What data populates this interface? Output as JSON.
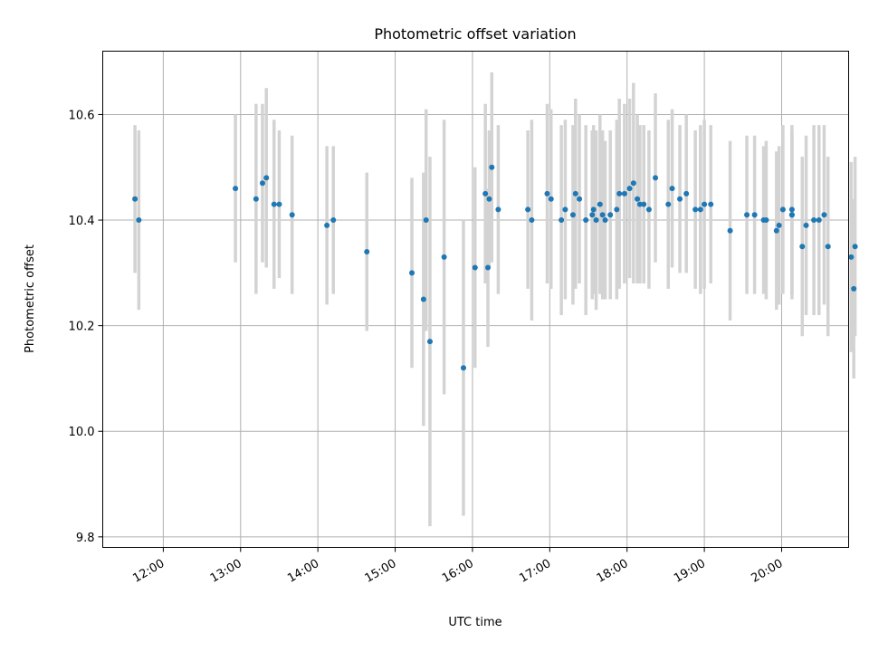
{
  "chart_data": {
    "type": "scatter",
    "title": "Photometric offset variation",
    "xlabel": "UTC time",
    "ylabel": "Photometric offset",
    "xlim": [
      "11:13",
      "20:52"
    ],
    "ylim": [
      9.78,
      10.72
    ],
    "x_ticks": [
      "12:00",
      "13:00",
      "14:00",
      "15:00",
      "16:00",
      "17:00",
      "18:00",
      "19:00",
      "20:00"
    ],
    "y_ticks": [
      "9.8",
      "10.0",
      "10.2",
      "10.4",
      "10.6"
    ],
    "grid": true,
    "colors": {
      "point": "#1f77b4",
      "error_bar": "#d3d3d3"
    },
    "series": [
      {
        "x": [
          "11:38",
          "11:41",
          "12:56",
          "13:12",
          "13:17",
          "13:20",
          "13:26",
          "13:30",
          "13:40",
          "14:07",
          "14:12",
          "14:38",
          "15:13",
          "15:22",
          "15:24",
          "15:27",
          "15:38",
          "15:53",
          "16:02",
          "16:10",
          "16:12",
          "16:13",
          "16:15",
          "16:20",
          "16:43",
          "16:46",
          "16:58",
          "17:01",
          "17:09",
          "17:12",
          "17:18",
          "17:20",
          "17:23",
          "17:28",
          "17:33",
          "17:34",
          "17:36",
          "17:39",
          "17:41",
          "17:43",
          "17:47",
          "17:52",
          "17:54",
          "17:58",
          "18:02",
          "18:05",
          "18:08",
          "18:10",
          "18:13",
          "18:17",
          "18:22",
          "18:32",
          "18:35",
          "18:41",
          "18:46",
          "18:53",
          "18:57",
          "19:00",
          "19:05",
          "19:20",
          "19:33",
          "19:39",
          "19:46",
          "19:48",
          "19:56",
          "19:58",
          "20:01",
          "20:08",
          "20:08",
          "20:08",
          "20:16",
          "20:19",
          "20:25",
          "20:29",
          "20:33",
          "20:36",
          "20:54",
          "20:56",
          "20:57"
        ],
        "y": [
          10.44,
          10.4,
          10.46,
          10.44,
          10.47,
          10.48,
          10.43,
          10.43,
          10.41,
          10.39,
          10.4,
          10.34,
          10.3,
          10.25,
          10.4,
          10.17,
          10.33,
          10.12,
          10.31,
          10.45,
          10.31,
          10.44,
          10.5,
          10.42,
          10.42,
          10.4,
          10.45,
          10.44,
          10.4,
          10.42,
          10.41,
          10.45,
          10.44,
          10.4,
          10.41,
          10.42,
          10.4,
          10.43,
          10.41,
          10.4,
          10.41,
          10.42,
          10.45,
          10.45,
          10.46,
          10.47,
          10.44,
          10.43,
          10.43,
          10.42,
          10.48,
          10.43,
          10.46,
          10.44,
          10.45,
          10.42,
          10.42,
          10.43,
          10.43,
          10.38,
          10.41,
          10.41,
          10.4,
          10.4,
          10.38,
          10.39,
          10.42,
          10.41,
          10.42,
          10.41,
          10.35,
          10.39,
          10.4,
          10.4,
          10.41,
          10.35,
          10.33,
          10.27,
          10.35
        ],
        "yerr": [
          0.14,
          0.17,
          0.14,
          0.18,
          0.15,
          0.17,
          0.16,
          0.14,
          0.15,
          0.15,
          0.14,
          0.15,
          0.18,
          0.24,
          0.21,
          0.35,
          0.26,
          0.28,
          0.19,
          0.17,
          0.15,
          0.13,
          0.18,
          0.16,
          0.15,
          0.19,
          0.17,
          0.17,
          0.18,
          0.17,
          0.17,
          0.18,
          0.16,
          0.18,
          0.16,
          0.16,
          0.17,
          0.17,
          0.16,
          0.15,
          0.16,
          0.17,
          0.18,
          0.17,
          0.17,
          0.19,
          0.16,
          0.15,
          0.15,
          0.15,
          0.16,
          0.16,
          0.15,
          0.14,
          0.15,
          0.15,
          0.16,
          0.16,
          0.15,
          0.17,
          0.15,
          0.15,
          0.14,
          0.15,
          0.15,
          0.15,
          0.16,
          0.16,
          0.16,
          0.15,
          0.17,
          0.17,
          0.18,
          0.18,
          0.17,
          0.17,
          0.18,
          0.17,
          0.17
        ]
      }
    ]
  }
}
